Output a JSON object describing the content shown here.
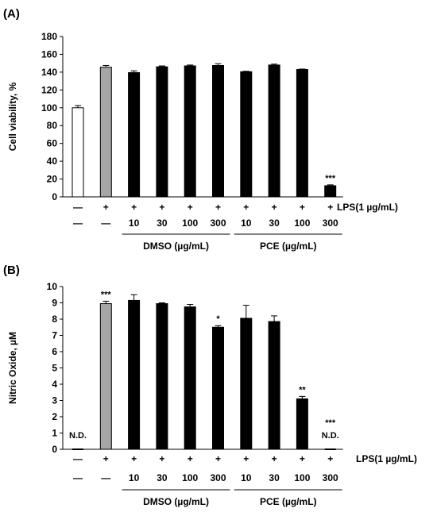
{
  "chart_data": [
    {
      "panel_label": "(A)",
      "type": "bar",
      "ylabel": "Cell viability, %",
      "ylim": [
        0,
        180
      ],
      "yticks": [
        0,
        20,
        40,
        60,
        80,
        100,
        120,
        140,
        160,
        180
      ],
      "grid": false,
      "values": [
        100,
        145.5,
        139.5,
        146,
        147,
        147.5,
        140.5,
        148,
        143,
        12.5
      ],
      "errors": [
        2.5,
        2,
        2,
        1,
        1,
        2,
        0.5,
        1,
        0.5,
        1
      ],
      "bar_colors": [
        "#ffffff",
        "#a6a6a6",
        "#000000",
        "#000000",
        "#000000",
        "#000000",
        "#000000",
        "#000000",
        "#000000",
        "#000000"
      ],
      "top_labels": [
        "",
        "",
        "",
        "",
        "",
        "",
        "",
        "",
        "",
        "***"
      ],
      "row1": [
        "—",
        "+",
        "+",
        "+",
        "+",
        "+",
        "+",
        "+",
        "+",
        "+"
      ],
      "row1_label": "LPS(1 µg/mL)",
      "row2": [
        "—",
        "—",
        "10",
        "30",
        "100",
        "300",
        "10",
        "30",
        "100",
        "300"
      ],
      "group_labels": [
        "DMSO (µg/mL)",
        "PCE (µg/mL)"
      ]
    },
    {
      "panel_label": "(B)",
      "type": "bar",
      "ylabel": "Nitric Oxide, µM",
      "ylim": [
        0,
        10
      ],
      "yticks": [
        0,
        1,
        2,
        3,
        4,
        5,
        6,
        7,
        8,
        9,
        10
      ],
      "grid": false,
      "values": [
        0,
        8.95,
        9.15,
        8.95,
        8.75,
        7.5,
        8.05,
        7.85,
        3.1,
        0
      ],
      "errors": [
        0,
        0.15,
        0.35,
        0.05,
        0.15,
        0.1,
        0.8,
        0.35,
        0.15,
        0
      ],
      "bar_colors": [
        "#ffffff",
        "#a6a6a6",
        "#000000",
        "#000000",
        "#000000",
        "#000000",
        "#000000",
        "#000000",
        "#000000",
        "#000000"
      ],
      "top_labels": [
        "N.D.",
        "***",
        "",
        "",
        "",
        "*",
        "",
        "",
        "**",
        "***"
      ],
      "extra_labels": [
        "",
        "",
        "",
        "",
        "",
        "",
        "",
        "",
        "",
        "N.D."
      ],
      "row1": [
        "—",
        "+",
        "+",
        "+",
        "+",
        "+",
        "+",
        "+",
        "+",
        "+"
      ],
      "row1_label": "LPS(1 µg/mL)",
      "row2": [
        "—",
        "—",
        "10",
        "30",
        "100",
        "300",
        "10",
        "30",
        "100",
        "300"
      ],
      "group_labels": [
        "DMSO (µg/mL)",
        "PCE (µg/mL)"
      ]
    }
  ]
}
